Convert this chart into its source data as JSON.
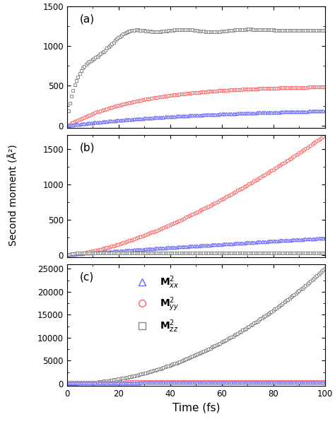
{
  "title_a": "(a)",
  "title_b": "(b)",
  "title_c": "(c)",
  "xlabel": "Time (fs)",
  "ylabel": "Second moment (Å²)",
  "xlim": [
    0,
    100
  ],
  "ylim_a": [
    -30,
    1500
  ],
  "ylim_b": [
    -30,
    1700
  ],
  "ylim_c": [
    -500,
    26000
  ],
  "yticks_a": [
    0,
    500,
    1000,
    1500
  ],
  "yticks_b": [
    0,
    500,
    1000,
    1500
  ],
  "yticks_c": [
    0,
    5000,
    10000,
    15000,
    20000,
    25000
  ],
  "color_xx": "#6666FF",
  "color_yy": "#FF6666",
  "color_zz": "#888888",
  "legend_labels": [
    "M$^2_{xx}$",
    "M$^2_{yy}$",
    "M$^2_{zz}$"
  ],
  "marker_xx": "^",
  "marker_yy": "o",
  "marker_zz": "s",
  "figsize": [
    4.74,
    6.0
  ],
  "dpi": 100
}
